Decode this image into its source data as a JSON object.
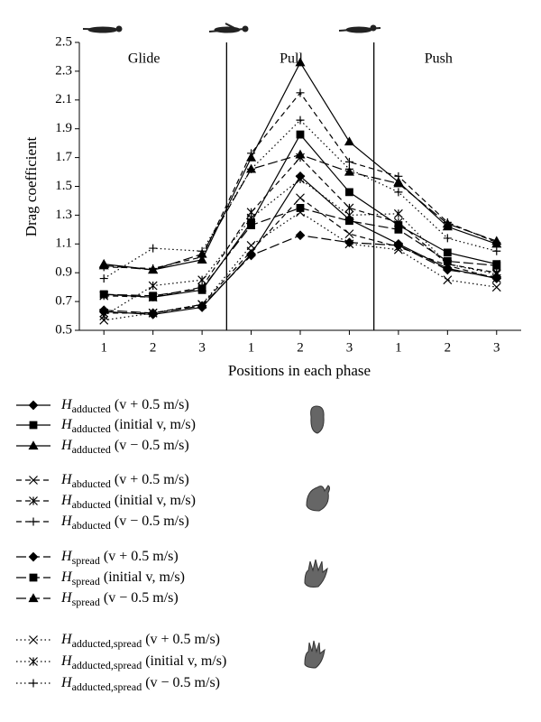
{
  "chart_data": {
    "type": "line",
    "y_label": "Drag coefficient",
    "x_label": "Positions in each phase",
    "phases": [
      "Glide",
      "Pull",
      "Push"
    ],
    "categories": [
      "1",
      "2",
      "3",
      "1",
      "2",
      "3",
      "1",
      "2",
      "3"
    ],
    "ylim": [
      0.5,
      2.5
    ],
    "yticks": [
      0.5,
      0.7,
      0.9,
      1.1,
      1.3,
      1.5,
      1.7,
      1.9,
      2.1,
      2.3,
      2.5
    ],
    "series": [
      {
        "symbol": "H",
        "subscript": "adducted",
        "condition": "(v + 0.5 m/s)",
        "color": "#000000",
        "dash": "solid",
        "marker": "diamond",
        "values": [
          0.63,
          0.61,
          0.66,
          1.03,
          1.57,
          1.27,
          1.1,
          0.93,
          0.86
        ]
      },
      {
        "symbol": "H",
        "subscript": "adducted",
        "condition": "(initial v, m/s)",
        "color": "#000000",
        "dash": "solid",
        "marker": "square",
        "values": [
          0.75,
          0.73,
          0.78,
          1.25,
          1.86,
          1.46,
          1.23,
          1.04,
          0.96
        ]
      },
      {
        "symbol": "H",
        "subscript": "adducted",
        "condition": "(v − 0.5 m/s)",
        "color": "#000000",
        "dash": "solid",
        "marker": "triangle",
        "values": [
          0.96,
          0.92,
          0.99,
          1.7,
          2.36,
          1.81,
          1.53,
          1.22,
          1.1
        ]
      },
      {
        "symbol": "H",
        "subscript": "abducted",
        "condition": "(v + 0.5 m/s)",
        "color": "#000000",
        "dash": "dashed",
        "marker": "x",
        "values": [
          0.62,
          0.62,
          0.68,
          1.05,
          1.42,
          1.17,
          1.08,
          0.95,
          0.86
        ]
      },
      {
        "symbol": "H",
        "subscript": "abducted",
        "condition": "(initial v, m/s)",
        "color": "#000000",
        "dash": "dashed",
        "marker": "star",
        "values": [
          0.74,
          0.73,
          0.8,
          1.32,
          1.7,
          1.35,
          1.25,
          0.96,
          0.9
        ]
      },
      {
        "symbol": "H",
        "subscript": "abducted",
        "condition": "(v − 0.5 m/s)",
        "color": "#000000",
        "dash": "dashed",
        "marker": "plus",
        "values": [
          0.94,
          0.93,
          1.01,
          1.73,
          2.15,
          1.67,
          1.57,
          1.25,
          1.11
        ]
      },
      {
        "symbol": "H",
        "subscript": "spread",
        "condition": "(v + 0.5 m/s)",
        "color": "#000000",
        "dash": "longdash",
        "marker": "diamond",
        "values": [
          0.64,
          0.62,
          0.67,
          1.02,
          1.16,
          1.11,
          1.09,
          0.92,
          0.87
        ]
      },
      {
        "symbol": "H",
        "subscript": "spread",
        "condition": "(initial v, m/s)",
        "color": "#000000",
        "dash": "longdash",
        "marker": "square",
        "values": [
          0.75,
          0.74,
          0.79,
          1.23,
          1.35,
          1.26,
          1.2,
          0.98,
          0.95
        ]
      },
      {
        "symbol": "H",
        "subscript": "spread",
        "condition": "(v − 0.5 m/s)",
        "color": "#000000",
        "dash": "longdash",
        "marker": "triangle",
        "values": [
          0.95,
          0.92,
          1.03,
          1.62,
          1.72,
          1.6,
          1.52,
          1.24,
          1.12
        ]
      },
      {
        "symbol": "H",
        "subscript": "adducted,spread",
        "condition": "(v + 0.5 m/s)",
        "color": "#000000",
        "dash": "dotted",
        "marker": "x",
        "values": [
          0.57,
          0.62,
          0.68,
          1.09,
          1.32,
          1.1,
          1.06,
          0.85,
          0.8
        ]
      },
      {
        "symbol": "H",
        "subscript": "adducted,spread",
        "condition": "(initial v, m/s)",
        "color": "#000000",
        "dash": "dotted",
        "marker": "star",
        "values": [
          0.6,
          0.81,
          0.85,
          1.28,
          1.55,
          1.3,
          1.31,
          0.96,
          0.89
        ]
      },
      {
        "symbol": "H",
        "subscript": "adducted,spread",
        "condition": "(v − 0.5 m/s)",
        "color": "#000000",
        "dash": "dotted",
        "marker": "plus",
        "values": [
          0.86,
          1.07,
          1.05,
          1.62,
          1.96,
          1.62,
          1.46,
          1.14,
          1.05
        ]
      }
    ]
  }
}
